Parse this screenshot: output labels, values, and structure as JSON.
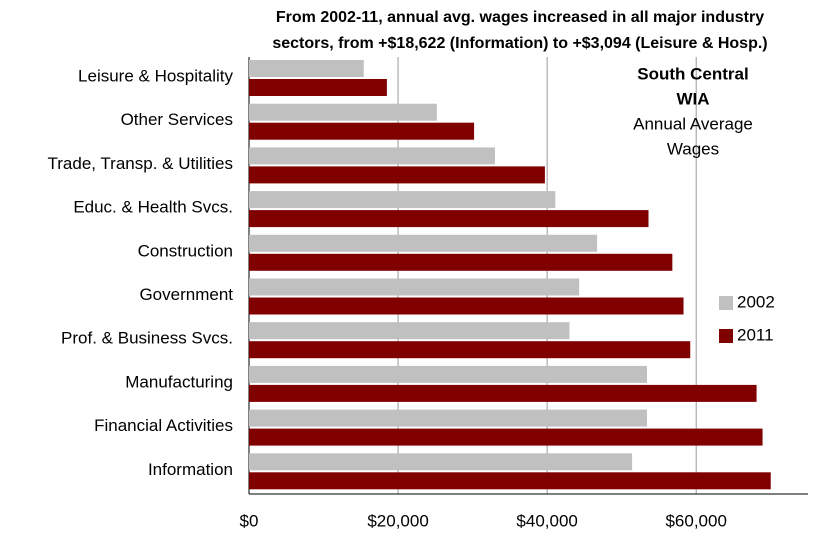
{
  "chart_data": {
    "type": "hbar",
    "title": [
      "From 2002-11, annual avg. wages increased in all major industry",
      "sectors, from +$18,622 (Information) to +$3,094 (Leisure & Hosp.)"
    ],
    "annotation": {
      "bold": [
        "South Central",
        "WIA"
      ],
      "normal": [
        "Annual Average",
        "Wages"
      ]
    },
    "categories": [
      "Leisure & Hospitality",
      "Other Services",
      "Trade, Transp. & Utilities",
      "Educ. & Health Svcs.",
      "Construction",
      "Government",
      "Prof. & Business Svcs.",
      "Manufacturing",
      "Financial Activities",
      "Information"
    ],
    "series": [
      {
        "name": "2002",
        "color": "#c0c0c0",
        "values": [
          15400,
          25200,
          33000,
          41100,
          46700,
          44300,
          43000,
          53400,
          53400,
          51400
        ]
      },
      {
        "name": "2011",
        "color": "#800000",
        "values": [
          18500,
          30200,
          39700,
          53600,
          56800,
          58300,
          59200,
          68100,
          68900,
          70000
        ]
      }
    ],
    "xlim": [
      0,
      75000
    ],
    "xticks": [
      {
        "value": 0,
        "label": "$0"
      },
      {
        "value": 20000,
        "label": "$20,000"
      },
      {
        "value": 40000,
        "label": "$40,000"
      },
      {
        "value": 60000,
        "label": "$60,000"
      }
    ],
    "grid": true,
    "legend": "right"
  }
}
